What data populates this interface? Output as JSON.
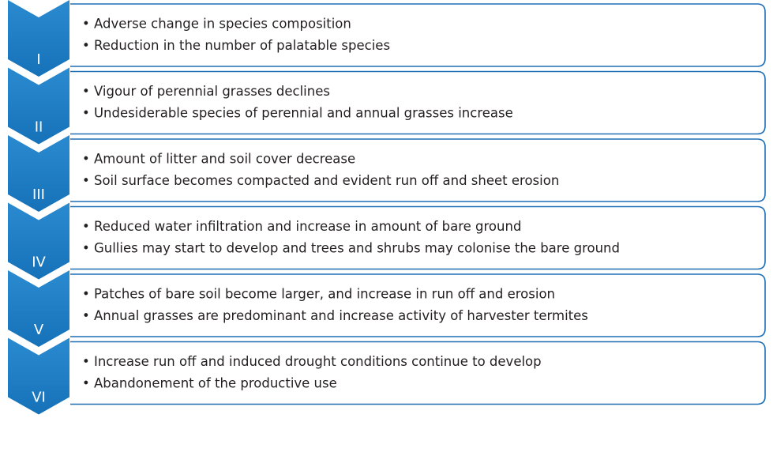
{
  "stages": [
    {
      "label": "I",
      "items": [
        "• Adverse change in species composition",
        "• Reduction in the number of palatable species"
      ]
    },
    {
      "label": "II",
      "items": [
        "• Vigour of perennial grasses declines",
        "• Undesiderable species of perennial and annual grasses increase"
      ]
    },
    {
      "label": "III",
      "items": [
        "• Amount of litter and soil cover decrease",
        "• Soil surface becomes compacted and evident run off and sheet erosion"
      ]
    },
    {
      "label": "IV",
      "items": [
        "• Reduced water infiltration and increase in amount of bare ground",
        "• Gullies may start to develop and trees and shrubs may colonise the bare ground"
      ]
    },
    {
      "label": "V",
      "items": [
        "• Patches of bare soil become larger, and increase in run off and erosion",
        "• Annual grasses are predominant and increase activity of harvester termites"
      ]
    },
    {
      "label": "VI",
      "items": [
        "• Increase run off and induced drought conditions continue to develop",
        "• Abandonement of the productive use"
      ]
    }
  ]
}
